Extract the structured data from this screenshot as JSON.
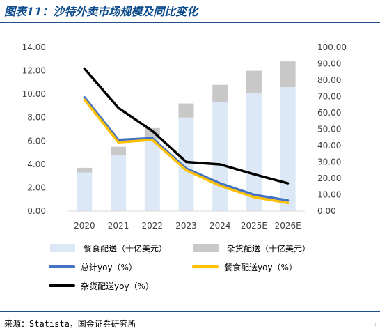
{
  "header": {
    "title": "图表11：沙特外卖市场规模及同比变化"
  },
  "footer": {
    "source": "来源：Statista，国金证券研究所",
    "corner_mark": ":"
  },
  "chart_data": {
    "type": "bar",
    "stacked": true,
    "categories": [
      "2020",
      "2021",
      "2022",
      "2023",
      "2024",
      "2025E",
      "2026E"
    ],
    "y_left": {
      "min": 0,
      "max": 14,
      "step": 2,
      "ticks": [
        "0.00",
        "2.00",
        "4.00",
        "6.00",
        "8.00",
        "10.00",
        "12.00",
        "14.00"
      ]
    },
    "y_right": {
      "min": 0,
      "max": 100,
      "step": 10,
      "ticks": [
        "0.00",
        "10.00",
        "20.00",
        "30.00",
        "40.00",
        "50.00",
        "60.00",
        "70.00",
        "80.00",
        "90.00",
        "100.00"
      ]
    },
    "bar_series": [
      {
        "name": "餐食配送（十亿美元）",
        "color": "#dce8f5",
        "values": [
          3.3,
          4.8,
          6.2,
          8.0,
          9.3,
          10.1,
          10.6
        ]
      },
      {
        "name": "杂货配送（十亿美元）",
        "color": "#c8c8c8",
        "values": [
          0.4,
          0.7,
          0.9,
          1.2,
          1.5,
          1.9,
          2.2
        ]
      }
    ],
    "line_series": [
      {
        "name": "总计yoy（%）",
        "color": "#4472c4",
        "axis": "right",
        "values": [
          69.5,
          43.5,
          44.5,
          26.0,
          17.0,
          10.0,
          6.5
        ]
      },
      {
        "name": "餐食配送yoy（%）",
        "color": "#ffc000",
        "axis": "right",
        "values": [
          68.0,
          42.0,
          43.5,
          25.0,
          15.5,
          8.5,
          5.0
        ]
      },
      {
        "name": "杂货配送yoy（%）",
        "color": "#000000",
        "axis": "right",
        "values": [
          87.0,
          63.0,
          49.0,
          30.0,
          28.5,
          22.5,
          17.0
        ]
      }
    ],
    "grid": false,
    "legend_position": "bottom"
  }
}
